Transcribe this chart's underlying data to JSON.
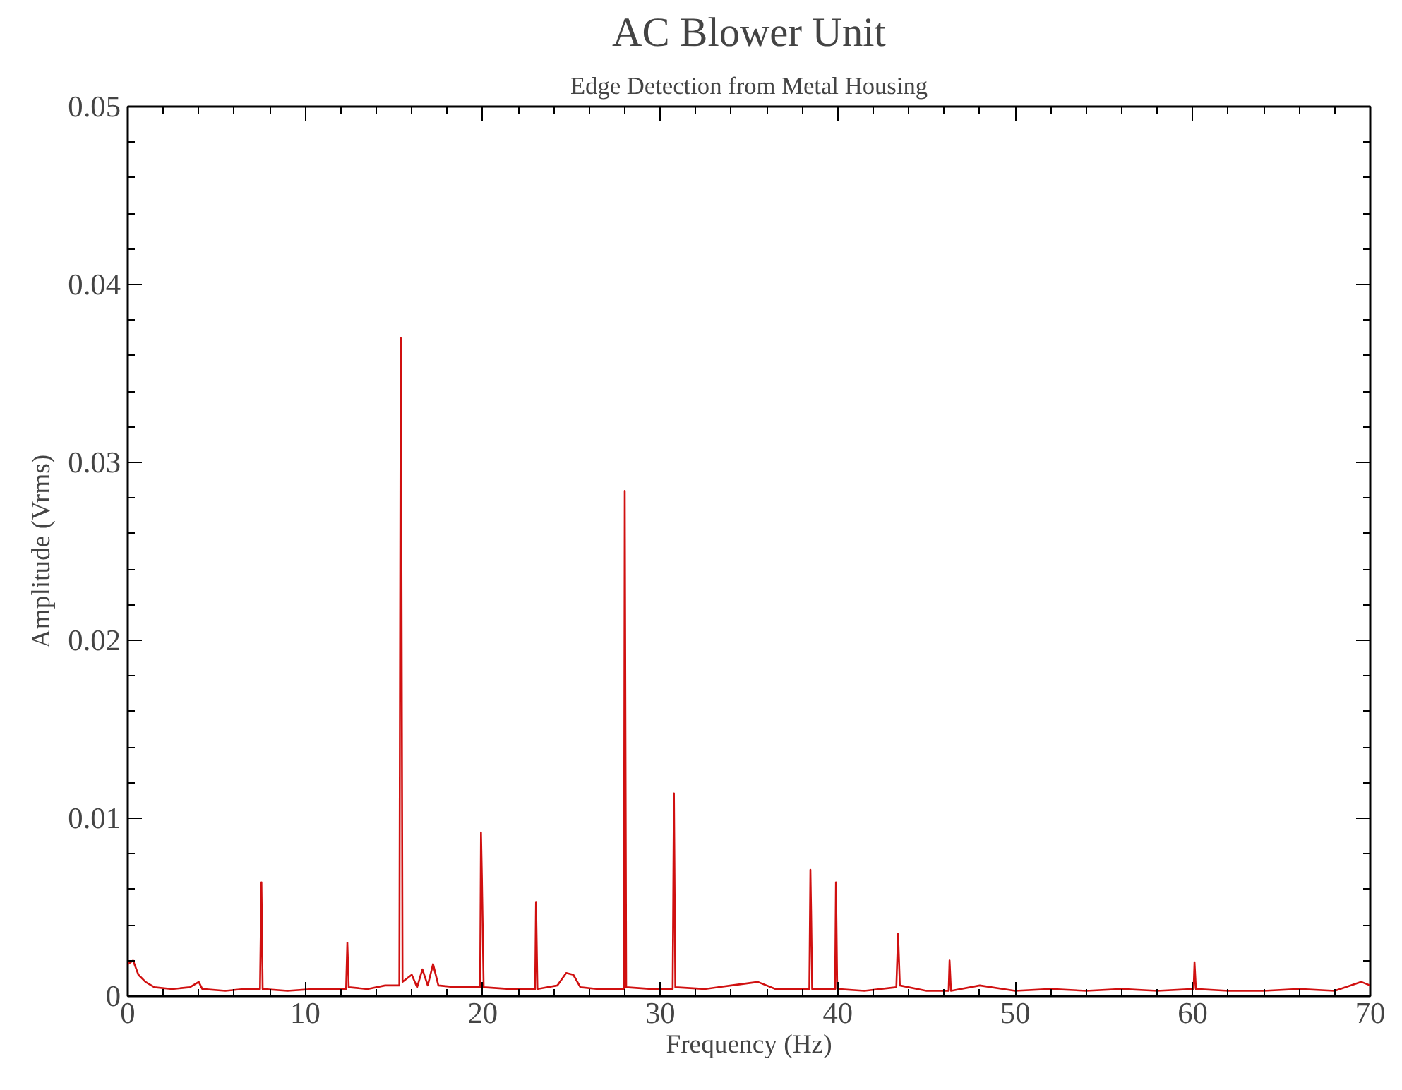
{
  "chart_data": {
    "type": "line",
    "title": "AC Blower Unit",
    "subtitle": "Edge Detection from Metal Housing",
    "xlabel": "Frequency (Hz)",
    "ylabel": "Amplitude (Vrms)",
    "xlim": [
      0,
      70
    ],
    "ylim": [
      0,
      0.05
    ],
    "xticks": [
      0,
      10,
      20,
      30,
      40,
      50,
      60,
      70
    ],
    "yticks": [
      0,
      0.01,
      0.02,
      0.03,
      0.04,
      0.05
    ],
    "line_style": "solid",
    "series": [
      {
        "color": "#d01010",
        "x": [
          0,
          0.3,
          0.6,
          1.0,
          1.5,
          2.5,
          3.5,
          4.0,
          4.2,
          5.5,
          6.5,
          7.45,
          7.53,
          7.6,
          9,
          10.5,
          12.3,
          12.37,
          12.45,
          13.5,
          14.5,
          15.3,
          15.38,
          15.42,
          15.48,
          16.0,
          16.3,
          16.6,
          16.9,
          17.2,
          17.5,
          18.5,
          19.85,
          19.9,
          19.95,
          20.05,
          21.5,
          22.95,
          23.0,
          23.08,
          24.2,
          24.7,
          25.1,
          25.5,
          26.5,
          27.95,
          28.0,
          28.08,
          29.5,
          30.7,
          30.77,
          30.85,
          32.5,
          34,
          35.5,
          36.5,
          38.4,
          38.46,
          38.5,
          38.56,
          39.85,
          39.9,
          39.97,
          41.5,
          43.3,
          43.4,
          43.5,
          45,
          46.25,
          46.3,
          46.38,
          48,
          50,
          52,
          54,
          56,
          58,
          60.05,
          60.1,
          60.18,
          62,
          64,
          66,
          68,
          69.5,
          70
        ],
        "values": [
          0.0018,
          0.002,
          0.0012,
          0.0008,
          0.0005,
          0.0004,
          0.0005,
          0.0008,
          0.0004,
          0.0003,
          0.0004,
          0.0004,
          0.0064,
          0.0004,
          0.0003,
          0.0004,
          0.0004,
          0.003,
          0.0005,
          0.0004,
          0.0006,
          0.0006,
          0.037,
          0.024,
          0.0008,
          0.0012,
          0.0005,
          0.0015,
          0.0006,
          0.0018,
          0.0006,
          0.0005,
          0.0005,
          0.0092,
          0.0067,
          0.0005,
          0.0004,
          0.0004,
          0.0053,
          0.0004,
          0.0006,
          0.0013,
          0.0012,
          0.0005,
          0.0004,
          0.0004,
          0.0284,
          0.0005,
          0.0004,
          0.0004,
          0.0114,
          0.0005,
          0.0004,
          0.0006,
          0.0008,
          0.0004,
          0.0004,
          0.0071,
          0.0047,
          0.0004,
          0.0004,
          0.0064,
          0.0004,
          0.0003,
          0.0005,
          0.0035,
          0.0006,
          0.0003,
          0.0003,
          0.002,
          0.0003,
          0.0006,
          0.0003,
          0.0004,
          0.0003,
          0.0004,
          0.0003,
          0.0004,
          0.0019,
          0.0004,
          0.0003,
          0.0003,
          0.0004,
          0.0003,
          0.0008,
          0.0006
        ]
      }
    ]
  }
}
